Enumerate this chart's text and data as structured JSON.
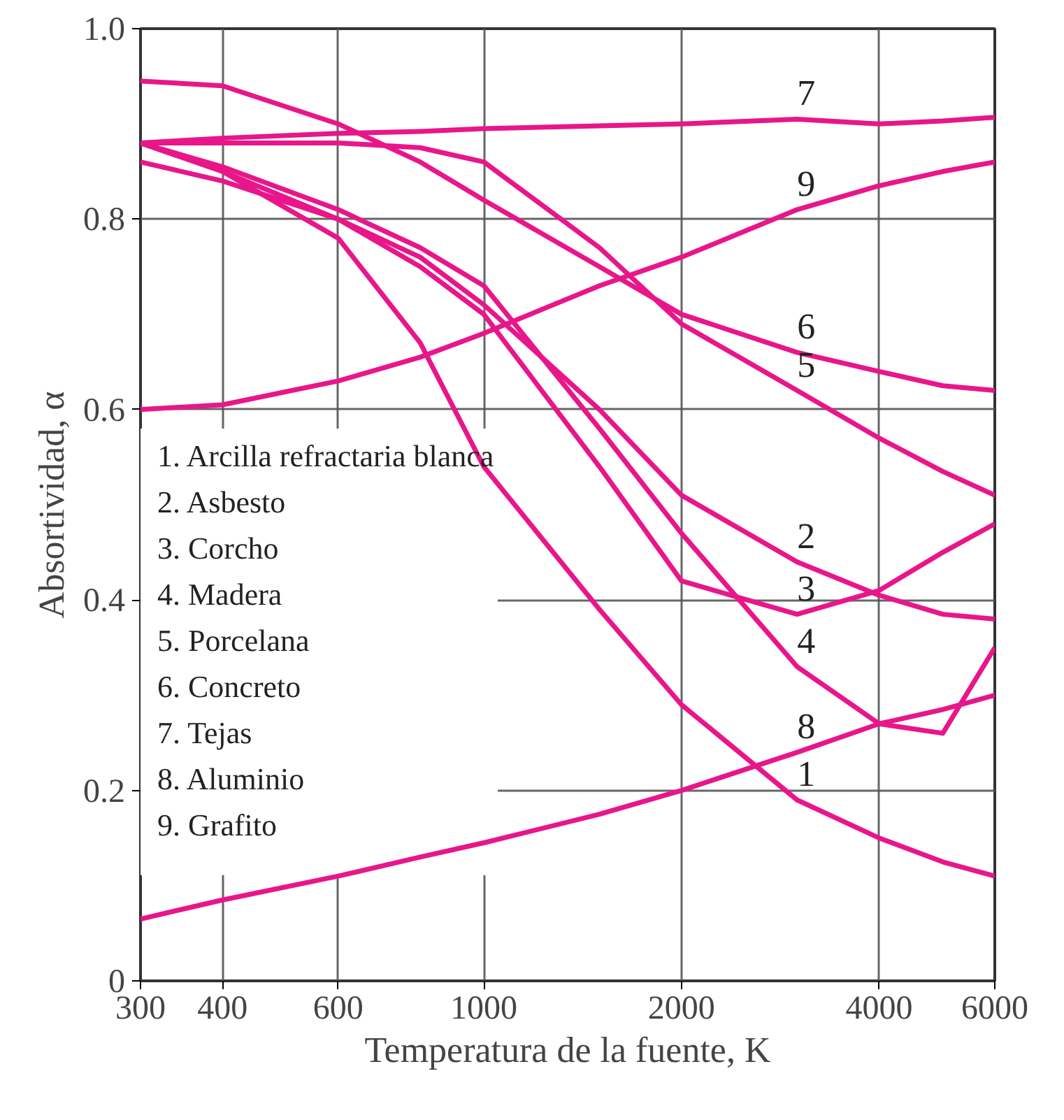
{
  "chart_data": {
    "type": "line",
    "xlabel": "Temperatura de la fuente, K",
    "ylabel": "Absortividad, α",
    "log": "x",
    "grid": true,
    "legend": false,
    "line_style": "solid",
    "marker": "none",
    "xlim": [
      300,
      6000
    ],
    "ylim": [
      0,
      1.0
    ],
    "xticks": [
      300,
      400,
      600,
      1000,
      2000,
      4000,
      6000
    ],
    "yticks": [
      {
        "value": 0,
        "label": "0"
      },
      0.2,
      0.4,
      0.6,
      0.8,
      {
        "value": 1.0,
        "label": "1.0"
      }
    ],
    "x": [
      300,
      400,
      600,
      800,
      1000,
      1500,
      2000,
      3000,
      4000,
      5000,
      6000
    ],
    "series": [
      {
        "name": "1",
        "color": "#e8168a",
        "values": [
          0.88,
          0.85,
          0.78,
          0.67,
          0.54,
          0.39,
          0.29,
          0.19,
          0.15,
          0.125,
          0.11
        ]
      },
      {
        "name": "2",
        "color": "#e8168a",
        "values": [
          0.86,
          0.84,
          0.8,
          0.76,
          0.71,
          0.6,
          0.51,
          0.44,
          0.405,
          0.385,
          0.38
        ]
      },
      {
        "name": "3",
        "color": "#e8168a",
        "values": [
          0.88,
          0.85,
          0.8,
          0.75,
          0.7,
          0.54,
          0.42,
          0.385,
          0.41,
          0.45,
          0.48
        ]
      },
      {
        "name": "4",
        "color": "#e8168a",
        "values": [
          0.88,
          0.855,
          0.81,
          0.77,
          0.73,
          0.58,
          0.47,
          0.33,
          0.27,
          0.26,
          0.35
        ]
      },
      {
        "name": "5",
        "color": "#e8168a",
        "values": [
          0.88,
          0.88,
          0.88,
          0.875,
          0.86,
          0.77,
          0.69,
          0.62,
          0.57,
          0.535,
          0.51
        ]
      },
      {
        "name": "6",
        "color": "#e8168a",
        "values": [
          0.945,
          0.94,
          0.9,
          0.86,
          0.82,
          0.75,
          0.7,
          0.66,
          0.64,
          0.625,
          0.62
        ]
      },
      {
        "name": "7",
        "color": "#e8168a",
        "values": [
          0.88,
          0.885,
          0.89,
          0.892,
          0.895,
          0.898,
          0.9,
          0.905,
          0.9,
          0.903,
          0.907
        ]
      },
      {
        "name": "8",
        "color": "#e8168a",
        "values": [
          0.065,
          0.085,
          0.11,
          0.13,
          0.145,
          0.175,
          0.2,
          0.24,
          0.27,
          0.285,
          0.3
        ]
      },
      {
        "name": "9",
        "color": "#e8168a",
        "values": [
          0.6,
          0.605,
          0.63,
          0.655,
          0.68,
          0.73,
          0.76,
          0.81,
          0.835,
          0.85,
          0.86
        ]
      }
    ],
    "annotations": [
      "1. Arcilla refractaria blanca",
      "2. Asbesto",
      "3. Corcho",
      "4. Madera",
      "5. Porcelana",
      "6. Concreto",
      "7. Tejas",
      "8. Aluminio",
      "9. Grafito"
    ]
  }
}
